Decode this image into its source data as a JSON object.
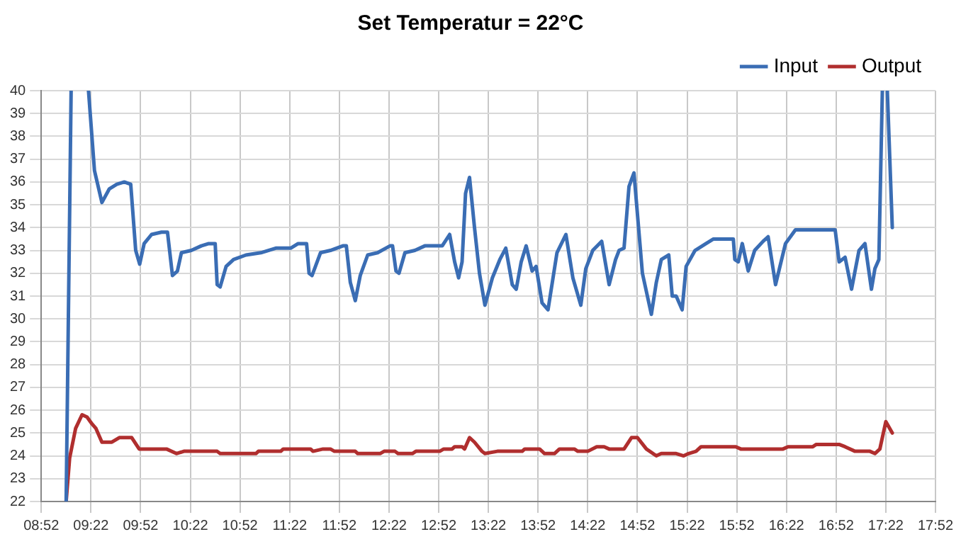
{
  "chart_data": {
    "type": "line",
    "title": "Set Temperatur = 22°C",
    "xlim": [
      8.8667,
      17.8667
    ],
    "xticks": [
      {
        "value": 8.8667,
        "label": "08:52"
      },
      {
        "value": 9.3667,
        "label": "09:22"
      },
      {
        "value": 9.8667,
        "label": "09:52"
      },
      {
        "value": 10.3667,
        "label": "10:22"
      },
      {
        "value": 10.8667,
        "label": "10:52"
      },
      {
        "value": 11.3667,
        "label": "11:22"
      },
      {
        "value": 11.8667,
        "label": "11:52"
      },
      {
        "value": 12.3667,
        "label": "12:22"
      },
      {
        "value": 12.8667,
        "label": "12:52"
      },
      {
        "value": 13.3667,
        "label": "13:22"
      },
      {
        "value": 13.8667,
        "label": "13:52"
      },
      {
        "value": 14.3667,
        "label": "14:22"
      },
      {
        "value": 14.8667,
        "label": "14:52"
      },
      {
        "value": 15.3667,
        "label": "15:22"
      },
      {
        "value": 15.8667,
        "label": "15:52"
      },
      {
        "value": 16.3667,
        "label": "16:22"
      },
      {
        "value": 16.8667,
        "label": "16:52"
      },
      {
        "value": 17.3667,
        "label": "17:22"
      },
      {
        "value": 17.8667,
        "label": "17:52"
      }
    ],
    "ylim": [
      22,
      40
    ],
    "yticks": [
      22,
      23,
      24,
      25,
      26,
      27,
      28,
      29,
      30,
      31,
      32,
      33,
      34,
      35,
      36,
      37,
      38,
      39,
      40
    ],
    "grid": true,
    "legend": "top right",
    "marker": "none",
    "line_style": "solid",
    "series": [
      {
        "name": "Input",
        "color": "#3a6db4",
        "x": [
          9.117,
          9.167,
          9.25,
          9.342,
          9.402,
          9.477,
          9.552,
          9.627,
          9.702,
          9.767,
          9.817,
          9.857,
          9.902,
          9.977,
          10.077,
          10.137,
          10.187,
          10.237,
          10.277,
          10.377,
          10.477,
          10.552,
          10.617,
          10.637,
          10.667,
          10.727,
          10.802,
          10.927,
          11.077,
          11.227,
          11.377,
          11.452,
          11.537,
          11.562,
          11.592,
          11.677,
          11.777,
          11.902,
          11.937,
          11.977,
          12.027,
          12.077,
          12.152,
          12.252,
          12.377,
          12.402,
          12.437,
          12.467,
          12.527,
          12.627,
          12.727,
          12.902,
          12.977,
          13.027,
          13.067,
          13.102,
          13.137,
          13.177,
          13.227,
          13.277,
          13.332,
          13.407,
          13.482,
          13.542,
          13.607,
          13.647,
          13.697,
          13.747,
          13.807,
          13.847,
          13.907,
          13.967,
          14.057,
          14.147,
          14.217,
          14.297,
          14.347,
          14.417,
          14.507,
          14.582,
          14.647,
          14.682,
          14.732,
          14.782,
          14.832,
          14.917,
          15.007,
          15.057,
          15.107,
          15.182,
          15.217,
          15.257,
          15.317,
          15.357,
          15.447,
          15.557,
          15.632,
          15.832,
          15.847,
          15.882,
          15.922,
          15.982,
          16.047,
          16.132,
          16.182,
          16.257,
          16.357,
          16.457,
          16.857,
          16.897,
          16.957,
          17.022,
          17.097,
          17.157,
          17.222,
          17.257,
          17.297,
          17.332,
          17.357,
          17.382,
          17.432
        ],
        "values": [
          22,
          40,
          null,
          40,
          36.5,
          35.1,
          35.7,
          35.9,
          36,
          35.9,
          33,
          32.4,
          33.3,
          33.7,
          33.8,
          33.8,
          31.9,
          32.1,
          32.9,
          33,
          33.2,
          33.3,
          33.3,
          31.5,
          31.4,
          32.3,
          32.6,
          32.8,
          32.9,
          33.1,
          33.1,
          33.3,
          33.3,
          32,
          31.9,
          32.9,
          33,
          33.2,
          33.2,
          31.6,
          30.8,
          31.9,
          32.8,
          32.9,
          33.2,
          33.2,
          32.1,
          32,
          32.9,
          33,
          33.2,
          33.2,
          33.7,
          32.5,
          31.8,
          32.5,
          35.5,
          36.2,
          34,
          32,
          30.6,
          31.8,
          32.6,
          33.1,
          31.5,
          31.3,
          32.5,
          33.2,
          32.1,
          32.3,
          30.7,
          30.4,
          32.9,
          33.7,
          31.8,
          30.6,
          32.2,
          33,
          33.4,
          31.5,
          32.6,
          33,
          33.1,
          35.8,
          36.4,
          32,
          30.2,
          31.6,
          32.6,
          32.8,
          31,
          31,
          30.4,
          32.3,
          33,
          33.3,
          33.5,
          33.5,
          32.6,
          32.5,
          33.3,
          32.1,
          33,
          33.4,
          33.6,
          31.5,
          33.3,
          33.9,
          33.9,
          32.5,
          32.7,
          31.3,
          33,
          33.3,
          31.3,
          32.2,
          32.6,
          40,
          null,
          40,
          34
        ]
      },
      {
        "name": "Output",
        "color": "#b02e2e",
        "x": [
          9.117,
          9.152,
          9.212,
          9.277,
          9.327,
          9.377,
          9.417,
          9.477,
          9.577,
          9.652,
          9.777,
          9.852,
          10.127,
          10.227,
          10.302,
          10.637,
          10.667,
          11.027,
          11.052,
          11.277,
          11.302,
          11.577,
          11.602,
          11.702,
          11.777,
          11.817,
          12.027,
          12.052,
          12.277,
          12.317,
          12.427,
          12.457,
          12.602,
          12.637,
          12.877,
          12.917,
          13.002,
          13.027,
          13.102,
          13.127,
          13.177,
          13.227,
          13.302,
          13.332,
          13.457,
          13.707,
          13.732,
          13.882,
          13.932,
          14.032,
          14.082,
          14.232,
          14.267,
          14.367,
          14.457,
          14.532,
          14.582,
          14.732,
          14.807,
          14.867,
          14.957,
          15.057,
          15.107,
          15.257,
          15.332,
          15.382,
          15.457,
          15.507,
          15.857,
          15.907,
          16.332,
          16.382,
          16.632,
          16.667,
          16.897,
          16.957,
          17.057,
          17.207,
          17.257,
          17.307,
          17.367,
          17.432
        ],
        "values": [
          22,
          23.9,
          25.2,
          25.8,
          25.7,
          25.4,
          25.2,
          24.6,
          24.6,
          24.8,
          24.8,
          24.3,
          24.3,
          24.1,
          24.2,
          24.2,
          24.1,
          24.1,
          24.2,
          24.2,
          24.3,
          24.3,
          24.2,
          24.3,
          24.3,
          24.2,
          24.2,
          24.1,
          24.1,
          24.2,
          24.2,
          24.1,
          24.1,
          24.2,
          24.2,
          24.3,
          24.3,
          24.4,
          24.4,
          24.3,
          24.8,
          24.6,
          24.2,
          24.1,
          24.2,
          24.2,
          24.3,
          24.3,
          24.1,
          24.1,
          24.3,
          24.3,
          24.2,
          24.2,
          24.4,
          24.4,
          24.3,
          24.3,
          24.8,
          24.8,
          24.3,
          24,
          24.1,
          24.1,
          24,
          24.1,
          24.2,
          24.4,
          24.4,
          24.3,
          24.3,
          24.4,
          24.4,
          24.5,
          24.5,
          24.4,
          24.2,
          24.2,
          24.1,
          24.3,
          25.5,
          25
        ]
      }
    ]
  }
}
